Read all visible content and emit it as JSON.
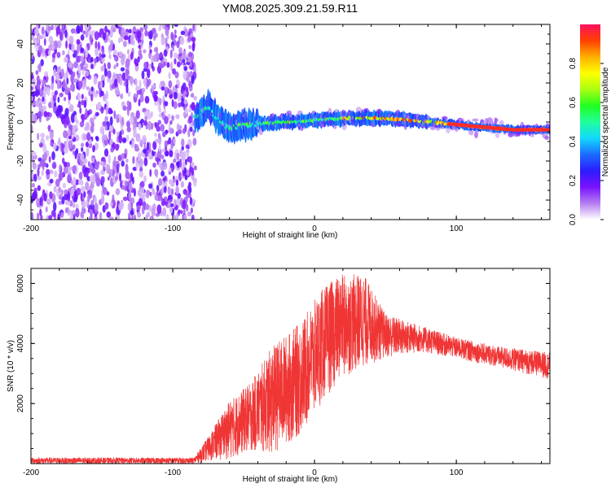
{
  "title": "YM08.2025.309.21.59.R11",
  "chart_data": [
    {
      "type": "heatmap",
      "name": "spectrogram",
      "xlabel": "Height of straight line (km)",
      "ylabel": "Frequency (Hz)",
      "xlim": [
        -200,
        166
      ],
      "ylim": [
        -50,
        50
      ],
      "xticks": [
        -200,
        -100,
        0,
        100
      ],
      "yticks": [
        -40,
        -20,
        0,
        20,
        40
      ],
      "colorbar": {
        "label": "Normalized spectral amplitude",
        "range": [
          0,
          1
        ],
        "ticks": [
          0.0,
          0.2,
          0.4,
          0.6,
          0.8
        ],
        "colors": [
          "#ffffff",
          "#b57ef0",
          "#7a12ff",
          "#2c1cff",
          "#1b6cff",
          "#12d8ff",
          "#20ff9a",
          "#20ff20",
          "#a8ff10",
          "#ffff00",
          "#ffb000",
          "#ff4000",
          "#ff1060"
        ]
      },
      "regions": [
        {
          "label": "noise",
          "x_range": [
            -200,
            -84
          ],
          "freq_range": [
            -50,
            50
          ],
          "amplitude": 0.15
        },
        {
          "label": "signal",
          "x_range": [
            -84,
            166
          ],
          "amplitude_range": [
            0.35,
            1.0
          ]
        }
      ],
      "ridge": [
        {
          "x": -84,
          "freq": 2
        },
        {
          "x": -75,
          "freq": 8
        },
        {
          "x": -70,
          "freq": 3
        },
        {
          "x": -60,
          "freq": -3
        },
        {
          "x": -40,
          "freq": -1
        },
        {
          "x": -20,
          "freq": 0
        },
        {
          "x": 0,
          "freq": 1
        },
        {
          "x": 25,
          "freq": 2
        },
        {
          "x": 50,
          "freq": 2
        },
        {
          "x": 80,
          "freq": 0
        },
        {
          "x": 110,
          "freq": -2
        },
        {
          "x": 140,
          "freq": -4
        },
        {
          "x": 166,
          "freq": -4
        }
      ]
    },
    {
      "type": "line",
      "name": "snr",
      "xlabel": "Height of straight line (km)",
      "ylabel": "SNR (10 * v/v)",
      "xlim": [
        -200,
        166
      ],
      "ylim": [
        0,
        6500
      ],
      "xticks": [
        -200,
        -100,
        0,
        100
      ],
      "yticks": [
        2000,
        4000,
        6000
      ],
      "color": "#f03535",
      "envelope": [
        {
          "x": -200,
          "low": 0,
          "high": 200
        },
        {
          "x": -85,
          "low": 0,
          "high": 200
        },
        {
          "x": -75,
          "low": 80,
          "high": 900
        },
        {
          "x": -60,
          "low": 150,
          "high": 2100
        },
        {
          "x": -45,
          "low": 400,
          "high": 2700
        },
        {
          "x": -30,
          "low": 300,
          "high": 3900
        },
        {
          "x": -10,
          "low": 900,
          "high": 4700
        },
        {
          "x": 5,
          "low": 2000,
          "high": 5800
        },
        {
          "x": 18,
          "low": 2800,
          "high": 6300
        },
        {
          "x": 35,
          "low": 3200,
          "high": 6300
        },
        {
          "x": 50,
          "low": 3500,
          "high": 5000
        },
        {
          "x": 75,
          "low": 3700,
          "high": 4600
        },
        {
          "x": 100,
          "low": 3500,
          "high": 4200
        },
        {
          "x": 130,
          "low": 3200,
          "high": 3900
        },
        {
          "x": 166,
          "low": 2800,
          "high": 3700
        }
      ]
    }
  ]
}
